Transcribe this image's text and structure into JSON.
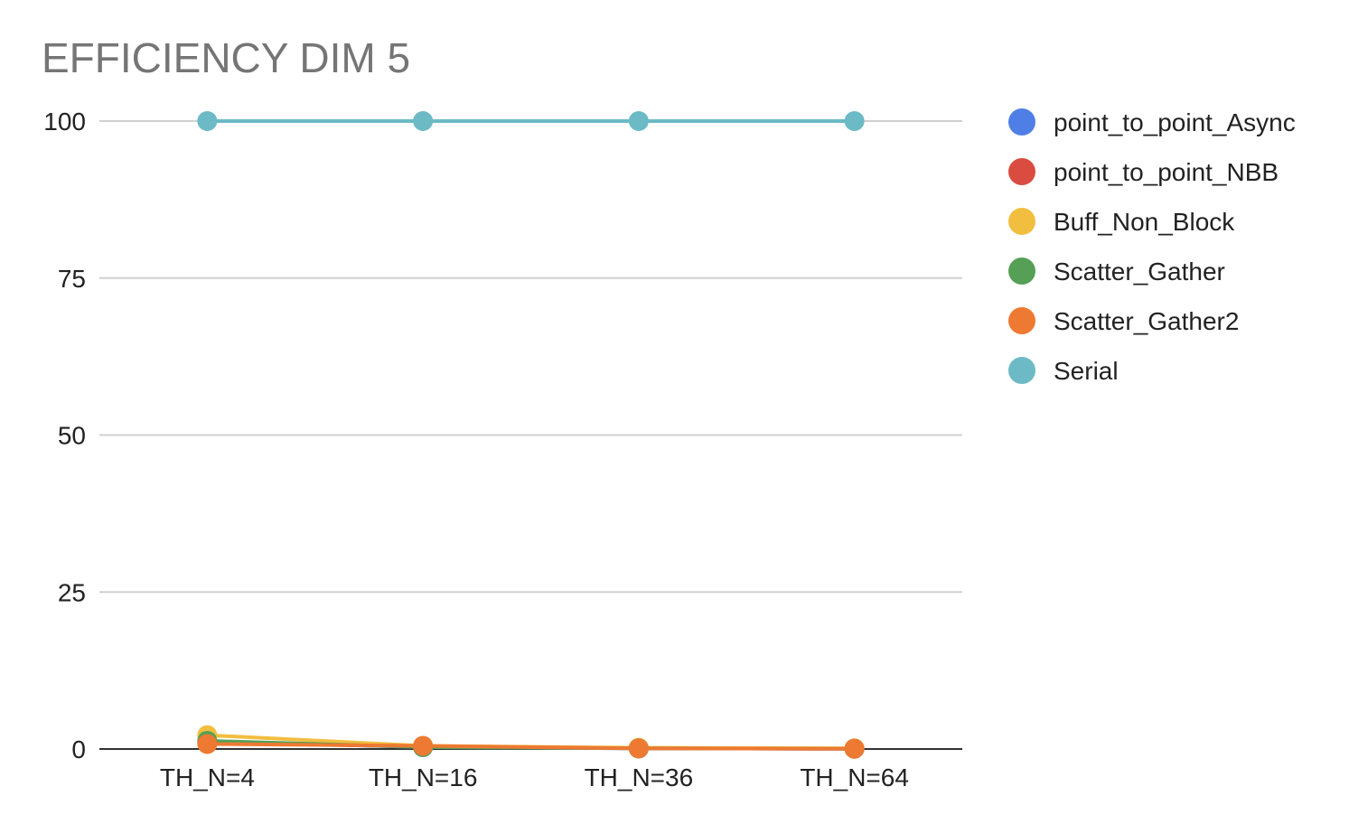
{
  "chart_data": {
    "type": "line",
    "title": "EFFICIENCY DIM 5",
    "xlabel": "",
    "ylabel": "",
    "categories": [
      "TH_N=4",
      "TH_N=16",
      "TH_N=36",
      "TH_N=64"
    ],
    "ylim": [
      0,
      100
    ],
    "yticks": [
      "0",
      "25",
      "50",
      "75",
      "100"
    ],
    "grid": true,
    "legend_position": "right",
    "series": [
      {
        "name": "point_to_point_Async",
        "color": "#4f7fe6",
        "values": [
          1.2,
          0.3,
          0.1,
          0.05
        ]
      },
      {
        "name": "point_to_point_NBB",
        "color": "#d94c3f",
        "values": [
          1.0,
          0.4,
          0.1,
          0.05
        ]
      },
      {
        "name": "Buff_Non_Block",
        "color": "#f2be3f",
        "values": [
          2.2,
          0.5,
          0.2,
          0.1
        ]
      },
      {
        "name": "Scatter_Gather",
        "color": "#55a056",
        "values": [
          1.3,
          0.3,
          0.1,
          0.05
        ]
      },
      {
        "name": "Scatter_Gather2",
        "color": "#ee7932",
        "values": [
          0.8,
          0.5,
          0.1,
          0.05
        ]
      },
      {
        "name": "Serial",
        "color": "#6bbac6",
        "values": [
          100,
          100,
          100,
          100
        ]
      }
    ]
  }
}
